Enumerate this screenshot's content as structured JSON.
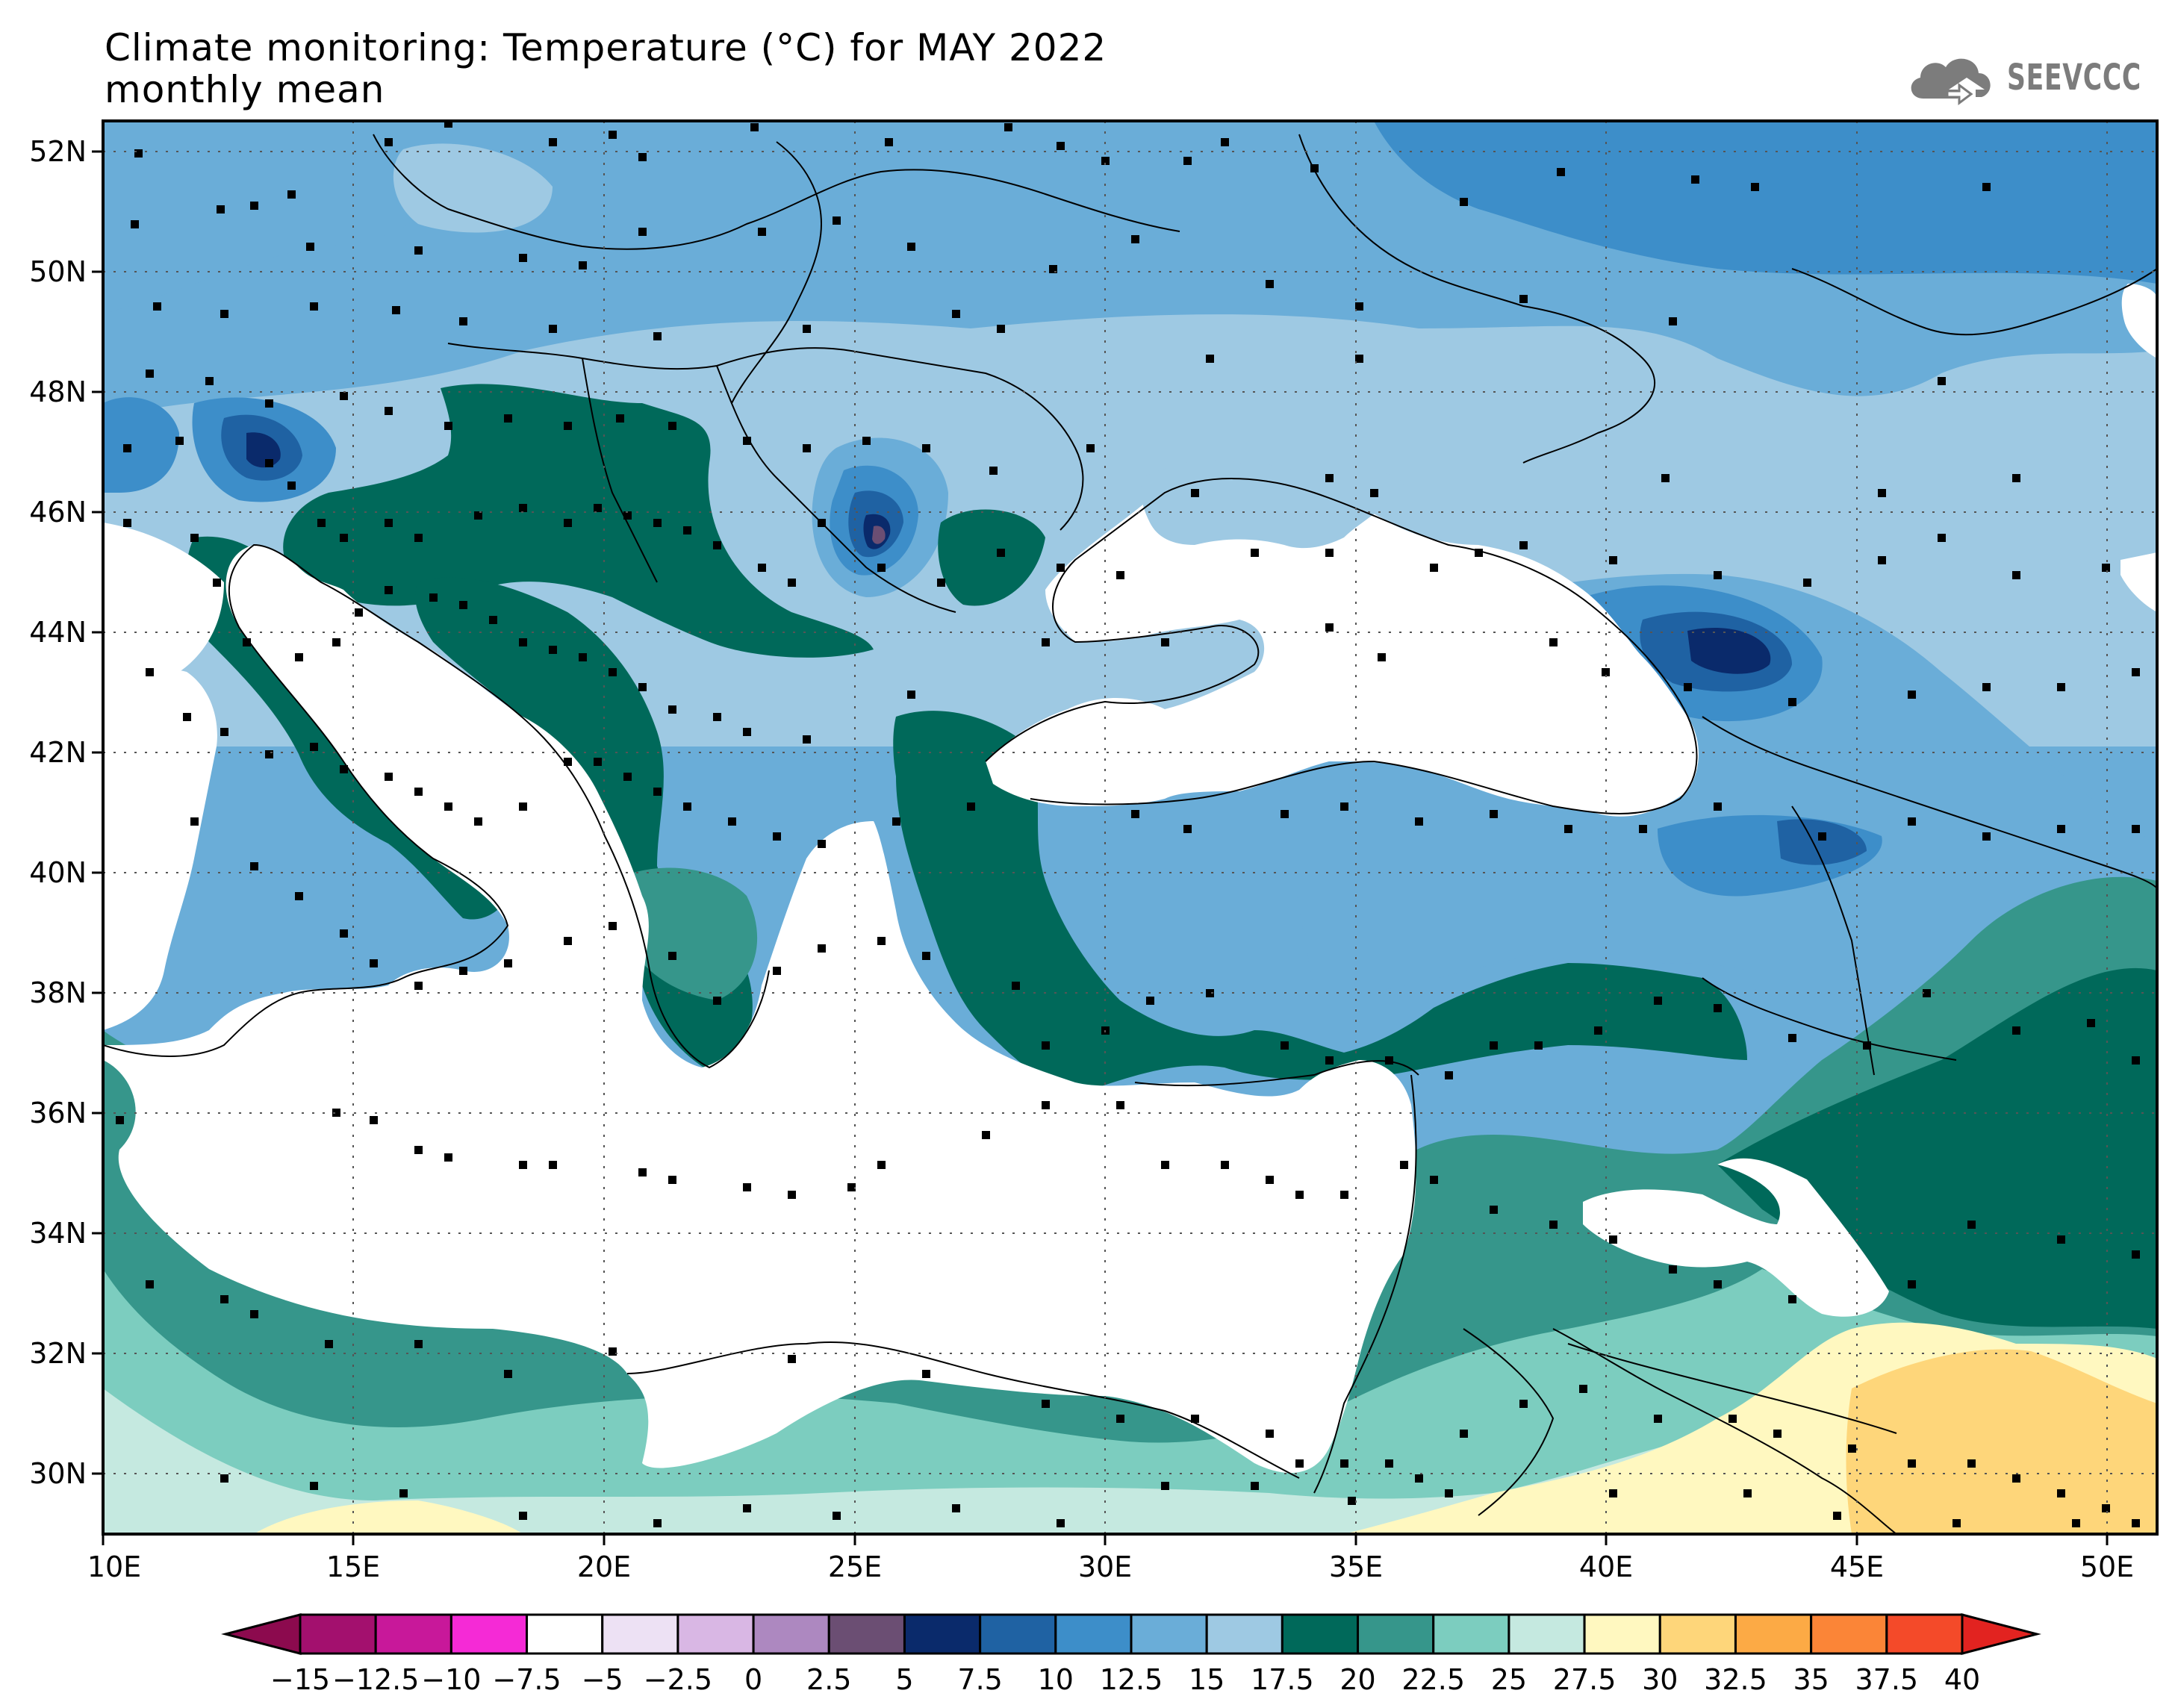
{
  "title": {
    "line1": "Climate monitoring: Temperature (°C) for MAY 2022",
    "line2": "monthly mean"
  },
  "logo": {
    "text": "SEEVCCC",
    "icon": "cloud-icon"
  },
  "map": {
    "lon_range": [
      10,
      51
    ],
    "lat_range": [
      29,
      52.5
    ],
    "lon_ticks": [
      "10E",
      "15E",
      "20E",
      "25E",
      "30E",
      "35E",
      "40E",
      "45E",
      "50E"
    ],
    "lat_ticks": [
      "52N",
      "50N",
      "48N",
      "46N",
      "44N",
      "42N",
      "40N",
      "38N",
      "36N",
      "34N",
      "32N",
      "30N"
    ]
  },
  "colorbar": {
    "labels": [
      "−15",
      "−12.5",
      "−10",
      "−7.5",
      "−5",
      "−2.5",
      "0",
      "2.5",
      "5",
      "7.5",
      "10",
      "12.5",
      "15",
      "17.5",
      "20",
      "22.5",
      "25",
      "27.5",
      "30",
      "32.5",
      "35",
      "37.5",
      "40"
    ],
    "colors": [
      "#8c0a4e",
      "#a3106e",
      "#c8189a",
      "#f52ad6",
      "#ffffff",
      "#ede1f4",
      "#d9b7e4",
      "#ad88c0",
      "#6b4e73",
      "#0a2a6b",
      "#1f62a3",
      "#3d8ec9",
      "#6aadd8",
      "#9ec9e3",
      "#00695a",
      "#36968b",
      "#7ccdbf",
      "#c5e9e0",
      "#fff8c0",
      "#fed67a",
      "#fcaa45",
      "#fb8537",
      "#f44a29",
      "#e22320"
    ]
  },
  "legend_colors": {
    "sea": "#ffffff",
    "c_7_5": "#0a2a6b",
    "c_10": "#1f62a3",
    "c_12_5": "#3d8ec9",
    "c_15": "#6aadd8",
    "c_17_5": "#9ec9e3",
    "c_20": "#00695a",
    "c_22_5": "#36968b",
    "c_25": "#7ccdbf",
    "c_27_5": "#c5e9e0",
    "c_30": "#fff8c0",
    "c_32_5": "#fed67a",
    "c_2_5": "#6b4e73"
  }
}
